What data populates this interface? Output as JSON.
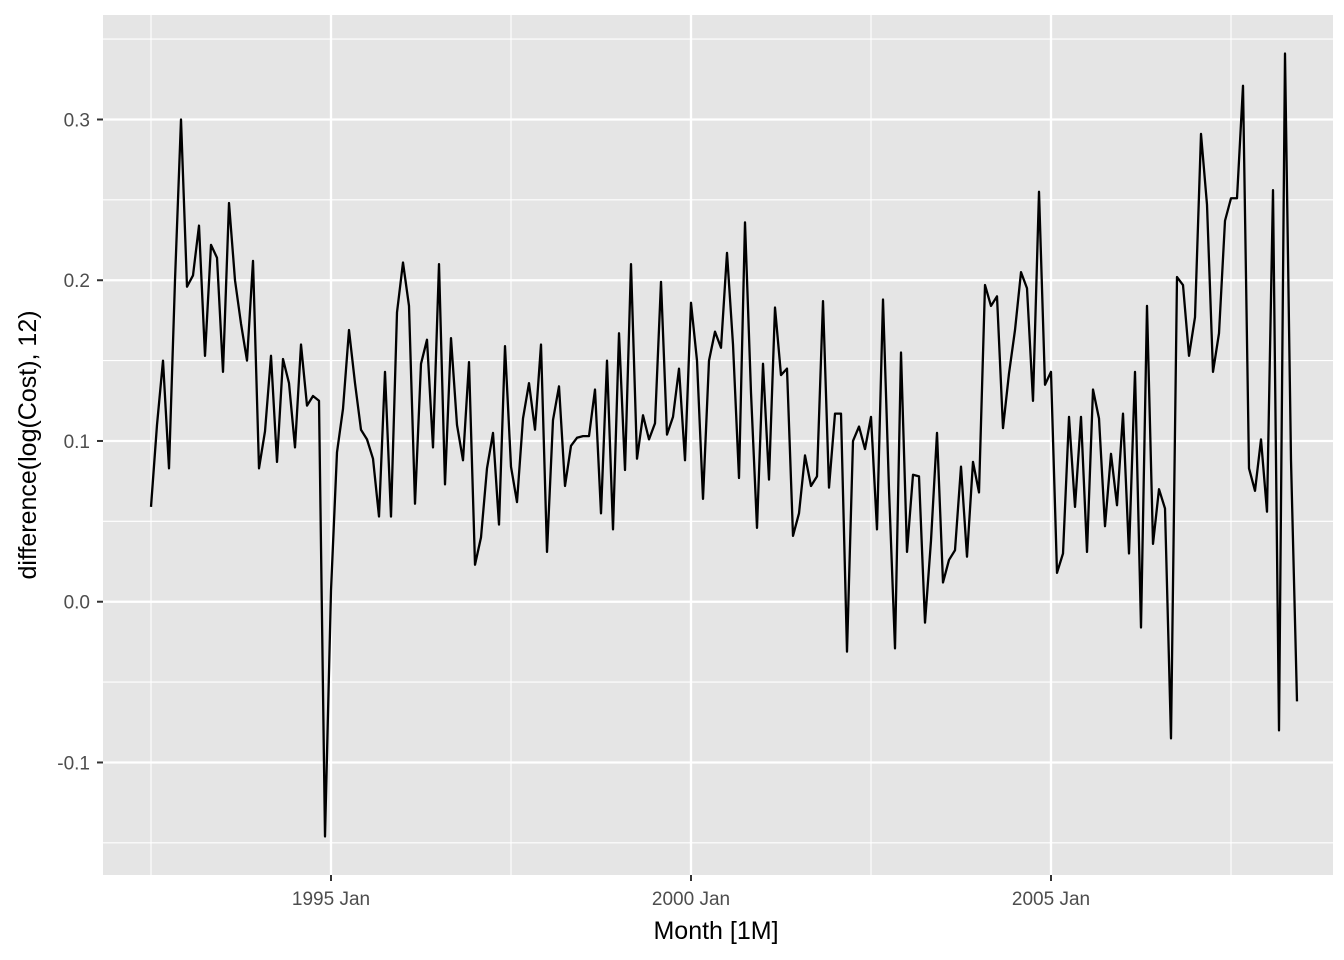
{
  "chart_data": {
    "type": "line",
    "title": "",
    "xlabel": "Month [1M]",
    "ylabel": "difference(log(Cost), 12)",
    "x_start": "1992 Jul",
    "x_step": "1 month",
    "x_ticks": [
      "1995 Jan",
      "2000 Jan",
      "2005 Jan"
    ],
    "y_ticks": [
      "-0.1",
      "0.0",
      "0.1",
      "0.2",
      "0.3"
    ],
    "xlim": [
      "1991 Nov",
      "2008 Dec"
    ],
    "ylim": [
      -0.17,
      0.365
    ],
    "grid": true,
    "legend": "none",
    "colors": {
      "panel": "#e5e5e5",
      "grid": "#ffffff",
      "line": "#000000",
      "tick_text": "#4d4d4d",
      "tick_mark": "#333333"
    },
    "values": [
      0.059,
      0.11,
      0.15,
      0.083,
      0.2,
      0.3,
      0.196,
      0.203,
      0.234,
      0.153,
      0.222,
      0.214,
      0.143,
      0.248,
      0.2,
      0.173,
      0.15,
      0.212,
      0.083,
      0.106,
      0.153,
      0.087,
      0.151,
      0.136,
      0.096,
      0.16,
      0.122,
      0.128,
      0.125,
      -0.146,
      0.007,
      0.093,
      0.12,
      0.169,
      0.136,
      0.107,
      0.101,
      0.089,
      0.053,
      0.143,
      0.053,
      0.18,
      0.211,
      0.184,
      0.061,
      0.148,
      0.163,
      0.096,
      0.21,
      0.073,
      0.164,
      0.11,
      0.088,
      0.149,
      0.023,
      0.04,
      0.083,
      0.105,
      0.048,
      0.159,
      0.084,
      0.062,
      0.114,
      0.136,
      0.107,
      0.16,
      0.031,
      0.113,
      0.134,
      0.072,
      0.097,
      0.102,
      0.103,
      0.103,
      0.132,
      0.055,
      0.15,
      0.045,
      0.167,
      0.082,
      0.21,
      0.089,
      0.116,
      0.101,
      0.111,
      0.199,
      0.104,
      0.115,
      0.145,
      0.088,
      0.186,
      0.15,
      0.064,
      0.15,
      0.168,
      0.158,
      0.217,
      0.16,
      0.077,
      0.236,
      0.13,
      0.046,
      0.148,
      0.076,
      0.183,
      0.141,
      0.145,
      0.041,
      0.055,
      0.091,
      0.072,
      0.078,
      0.187,
      0.071,
      0.117,
      0.117,
      -0.031,
      0.1,
      0.109,
      0.095,
      0.115,
      0.045,
      0.188,
      0.07,
      -0.029,
      0.155,
      0.031,
      0.079,
      0.078,
      -0.013,
      0.038,
      0.105,
      0.012,
      0.026,
      0.032,
      0.084,
      0.028,
      0.087,
      0.068,
      0.197,
      0.184,
      0.19,
      0.108,
      0.142,
      0.169,
      0.205,
      0.195,
      0.125,
      0.255,
      0.135,
      0.143,
      0.018,
      0.03,
      0.115,
      0.059,
      0.115,
      0.031,
      0.132,
      0.114,
      0.047,
      0.092,
      0.06,
      0.117,
      0.03,
      0.143,
      -0.016,
      0.184,
      0.036,
      0.07,
      0.058,
      -0.085,
      0.202,
      0.197,
      0.153,
      0.177,
      0.291,
      0.247,
      0.143,
      0.167,
      0.237,
      0.251,
      0.251,
      0.321,
      0.083,
      0.069,
      0.101,
      0.056,
      0.256,
      -0.08,
      0.341,
      0.088,
      -0.062
    ]
  }
}
